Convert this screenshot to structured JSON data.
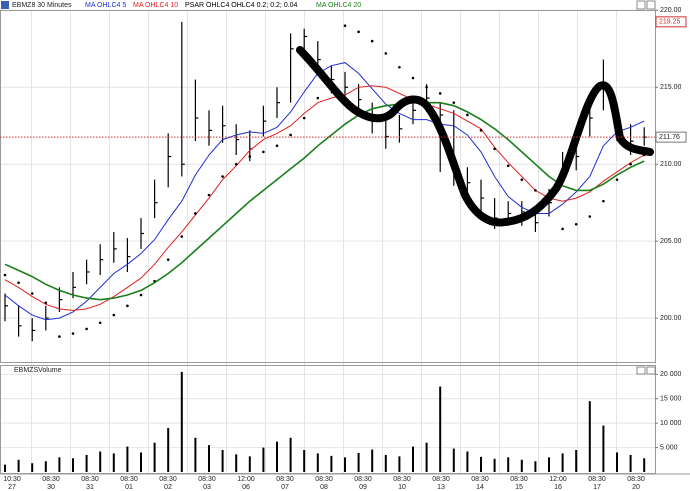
{
  "chart_data": {
    "type": "ohlc",
    "title": "EBMZ8 30 Minutes",
    "high": [
      201.6,
      200.8,
      200.0,
      200.8,
      202.0,
      203.0,
      203.8,
      204.8,
      205.6,
      205.2,
      206.5,
      209.0,
      212.0,
      219.25,
      215.5,
      213.5,
      213.8,
      212.6,
      212.2,
      213.8,
      215.0,
      218.5,
      218.8,
      218.0,
      216.4,
      216.0,
      215.2,
      214.0,
      213.0,
      213.2,
      214.4,
      215.2,
      214.0,
      213.5,
      209.8,
      209.0,
      207.8,
      207.6,
      207.6,
      207.2,
      208.4,
      210.8,
      211.8,
      213.8,
      216.8,
      214.0,
      212.6,
      212.4
    ],
    "low": [
      199.8,
      198.8,
      198.5,
      199.2,
      200.4,
      201.3,
      202.2,
      202.8,
      203.6,
      203.0,
      204.5,
      206.5,
      208.5,
      209.2,
      211.5,
      211.2,
      211.4,
      210.6,
      210.2,
      211.8,
      213.0,
      214.0,
      217.2,
      215.8,
      214.6,
      214.0,
      213.2,
      212.0,
      211.0,
      211.4,
      212.6,
      213.4,
      209.5,
      208.6,
      207.8,
      206.8,
      205.8,
      206.0,
      206.0,
      205.6,
      206.6,
      208.8,
      209.6,
      211.8,
      213.5,
      211.5,
      210.6,
      211.2
    ],
    "close": [
      200.8,
      199.5,
      199.2,
      200.0,
      201.2,
      202.0,
      203.0,
      203.8,
      204.5,
      204.0,
      205.5,
      207.5,
      210.5,
      210.0,
      213.0,
      212.2,
      212.5,
      211.6,
      211.0,
      212.8,
      214.0,
      217.5,
      218.3,
      216.8,
      215.5,
      215.0,
      214.2,
      213.0,
      211.8,
      212.3,
      213.5,
      214.3,
      213.2,
      209.5,
      208.8,
      207.8,
      206.5,
      206.8,
      206.9,
      206.2,
      207.5,
      209.8,
      210.5,
      213.0,
      215.0,
      212.3,
      211.5,
      211.76
    ],
    "series": [
      {
        "name": "MA OHLC4  5",
        "color": "#1f2fd0",
        "style": "line",
        "values": [
          201.5,
          200.8,
          200.2,
          199.9,
          200.0,
          200.4,
          201.1,
          202.0,
          202.9,
          203.5,
          204.2,
          205.1,
          206.4,
          207.6,
          209.3,
          210.6,
          211.6,
          211.9,
          212.1,
          212.0,
          212.4,
          213.4,
          214.7,
          215.9,
          216.4,
          216.6,
          215.9,
          214.9,
          213.9,
          213.3,
          212.9,
          212.9,
          212.6,
          212.5,
          211.9,
          210.8,
          209.2,
          207.9,
          207.2,
          206.8,
          206.8,
          207.4,
          208.2,
          209.2,
          211.2,
          212.1,
          212.4,
          212.8
        ]
      },
      {
        "name": "MA OHLC4  10",
        "color": "#e02020",
        "style": "line",
        "values": [
          202.5,
          202.0,
          201.4,
          200.9,
          200.6,
          200.5,
          200.6,
          200.9,
          201.4,
          202.0,
          202.6,
          203.5,
          204.6,
          205.6,
          206.7,
          207.8,
          209.0,
          209.9,
          210.9,
          211.6,
          212.0,
          212.5,
          213.3,
          214.0,
          214.3,
          214.5,
          215.0,
          215.1,
          215.0,
          214.6,
          214.2,
          213.9,
          213.6,
          213.3,
          212.8,
          212.3,
          211.1,
          210.1,
          209.2,
          208.3,
          207.8,
          207.6,
          207.8,
          208.2,
          208.9,
          209.5,
          210.1,
          210.6
        ]
      },
      {
        "name": "PSAR OHLC4 OHLC4  0.2; 0.2; 0.04",
        "color": "#000000",
        "style": "dots",
        "values": [
          202.8,
          202.3,
          201.6,
          201.0,
          198.8,
          199.0,
          199.3,
          199.7,
          200.2,
          200.8,
          201.5,
          202.4,
          203.8,
          205.3,
          206.8,
          208.0,
          209.2,
          210.0,
          210.5,
          210.8,
          211.2,
          211.9,
          213.0,
          214.3,
          215.3,
          219.0,
          218.6,
          218.0,
          217.2,
          216.3,
          215.6,
          215.0,
          214.6,
          214.0,
          213.2,
          212.2,
          211.0,
          209.9,
          209.0,
          208.3,
          207.8,
          205.8,
          206.1,
          206.6,
          207.6,
          209.0,
          210.0,
          210.6
        ]
      },
      {
        "name": "MA OHLC4  20",
        "color": "#1a7f1a",
        "style": "line",
        "values": [
          203.5,
          203.1,
          202.7,
          202.2,
          201.8,
          201.5,
          201.3,
          201.2,
          201.3,
          201.5,
          201.8,
          202.3,
          202.9,
          203.6,
          204.4,
          205.2,
          206.0,
          206.8,
          207.6,
          208.3,
          209.0,
          209.7,
          210.4,
          211.2,
          211.9,
          212.6,
          213.2,
          213.6,
          213.8,
          213.9,
          214.0,
          214.0,
          214.0,
          213.8,
          213.4,
          212.9,
          212.3,
          211.6,
          210.8,
          210.0,
          209.2,
          208.6,
          208.3,
          208.3,
          208.7,
          209.3,
          209.8,
          210.2
        ]
      }
    ],
    "ylim": [
      197.15,
      220.15
    ],
    "yticks": [
      {
        "value": 200,
        "label": "200.00"
      },
      {
        "value": 205,
        "label": "205.00"
      },
      {
        "value": 210,
        "label": "210.00"
      },
      {
        "value": 215,
        "label": "215.00"
      },
      {
        "value": 220,
        "label": "220.00"
      }
    ],
    "last_price": 211.76,
    "max_price": 219.25,
    "grid": true,
    "x_time_labels": [
      "10:30",
      "08:30",
      "08:30",
      "08:30",
      "08:30",
      "08:30",
      "12:00",
      "08:30",
      "08:30",
      "08:30",
      "08:30",
      "08:30",
      "08:30",
      "08:30",
      "12:00",
      "08:30",
      "08:30"
    ],
    "x_date_labels": [
      "27",
      "30",
      "31",
      "01",
      "02",
      "03",
      "06",
      "07",
      "08",
      "09",
      "10",
      "13",
      "14",
      "15",
      "16",
      "17",
      "20"
    ],
    "volume": {
      "title": "EBMZSVolume",
      "color": "#000000",
      "values": [
        1500,
        2500,
        1800,
        2200,
        3000,
        2800,
        3500,
        4200,
        3800,
        5200,
        4000,
        6000,
        9000,
        20500,
        7000,
        5500,
        4500,
        3600,
        3200,
        5000,
        6200,
        7000,
        4500,
        3800,
        3300,
        3000,
        3900,
        4600,
        3500,
        3200,
        5200,
        6000,
        17500,
        4800,
        4200,
        3100,
        2700,
        3000,
        2500,
        2200,
        3000,
        3800,
        4500,
        14500,
        9500,
        4000,
        3500,
        2800
      ],
      "ylim": [
        0,
        21500
      ],
      "yticks": [
        {
          "value": 5000,
          "label": "5 000"
        },
        {
          "value": 10000,
          "label": "10 000"
        },
        {
          "value": 15000,
          "label": "15 000"
        },
        {
          "value": 20000,
          "label": "20 000"
        }
      ]
    }
  }
}
